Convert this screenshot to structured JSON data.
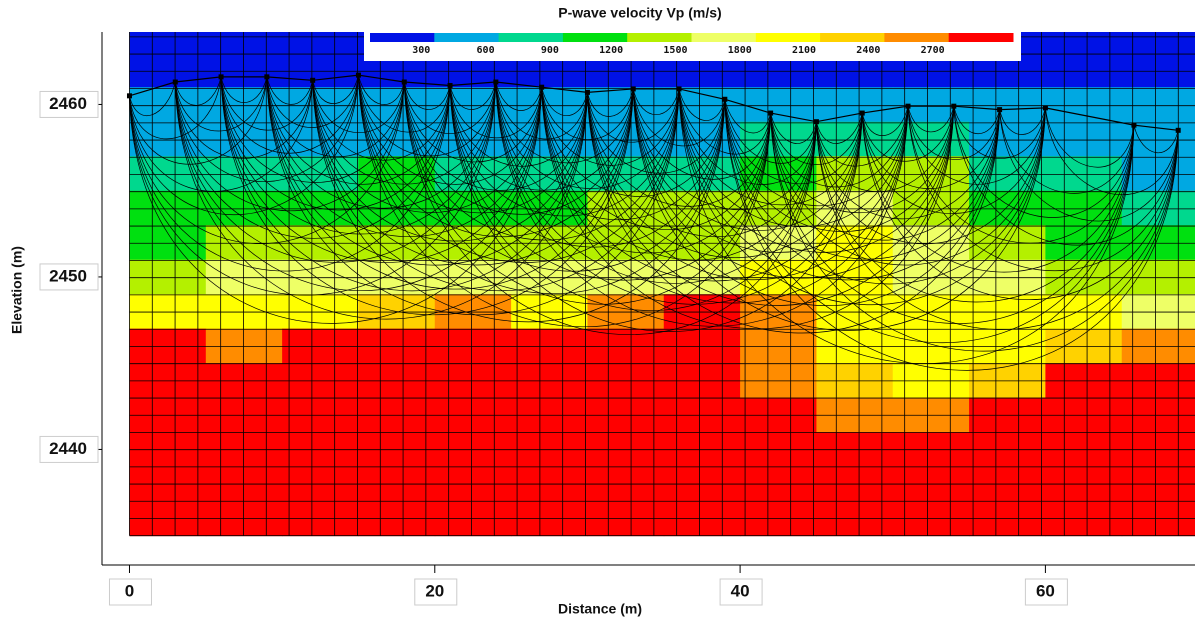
{
  "chart_data": {
    "type": "heatmap",
    "title": "P-wave velocity Vp (m/s)",
    "xlabel": "Distance (m)",
    "ylabel": "Elevation (m)",
    "xlim": [
      -1.8,
      69.8
    ],
    "ylim": [
      2433.3,
      2464.2
    ],
    "xticks": [
      0,
      20,
      40,
      60
    ],
    "yticks": [
      2440,
      2450,
      2460
    ],
    "x_edges": [
      0,
      5,
      10,
      15,
      20,
      25,
      30,
      35,
      40,
      45,
      50,
      55,
      60,
      65,
      70
    ],
    "y_edges": [
      2465,
      2463,
      2461,
      2459,
      2457,
      2455,
      2453,
      2451,
      2449,
      2447,
      2445,
      2443,
      2441,
      2439,
      2437,
      2435
    ],
    "values": [
      [
        150,
        150,
        150,
        150,
        150,
        150,
        150,
        150,
        150,
        150,
        150,
        150,
        150,
        150
      ],
      [
        150,
        150,
        150,
        150,
        150,
        150,
        150,
        150,
        150,
        150,
        150,
        150,
        150,
        150
      ],
      [
        450,
        450,
        450,
        450,
        450,
        450,
        450,
        450,
        450,
        450,
        450,
        450,
        450,
        450
      ],
      [
        450,
        450,
        450,
        450,
        450,
        450,
        450,
        450,
        750,
        750,
        750,
        450,
        450,
        450
      ],
      [
        750,
        750,
        750,
        1050,
        750,
        750,
        750,
        750,
        1050,
        1350,
        1350,
        750,
        750,
        450
      ],
      [
        1050,
        1050,
        1050,
        1050,
        1050,
        1050,
        1350,
        1350,
        1350,
        1650,
        1350,
        1050,
        1050,
        750
      ],
      [
        1050,
        1350,
        1350,
        1350,
        1350,
        1350,
        1350,
        1350,
        1650,
        1950,
        1650,
        1350,
        1050,
        1050
      ],
      [
        1350,
        1650,
        1650,
        1650,
        1650,
        1650,
        1650,
        1650,
        1950,
        1950,
        1650,
        1650,
        1350,
        1350
      ],
      [
        1950,
        1950,
        1950,
        2250,
        2550,
        1950,
        2550,
        2850,
        2550,
        1950,
        1950,
        1950,
        1950,
        1650
      ],
      [
        2850,
        2550,
        2850,
        2850,
        2850,
        2850,
        2850,
        2850,
        2550,
        1950,
        1950,
        1950,
        2250,
        2550
      ],
      [
        2850,
        2850,
        2850,
        2850,
        2850,
        2850,
        2850,
        2850,
        2550,
        2250,
        1950,
        2250,
        2850,
        2850
      ],
      [
        2850,
        2850,
        2850,
        2850,
        2850,
        2850,
        2850,
        2850,
        2850,
        2550,
        2550,
        2850,
        2850,
        2850
      ],
      [
        2850,
        2850,
        2850,
        2850,
        2850,
        2850,
        2850,
        2850,
        2850,
        2850,
        2850,
        2850,
        2850,
        2850
      ],
      [
        2850,
        2850,
        2850,
        2850,
        2850,
        2850,
        2850,
        2850,
        2850,
        2850,
        2850,
        2850,
        2850,
        2850
      ],
      [
        2850,
        2850,
        2850,
        2850,
        2850,
        2850,
        2850,
        2850,
        2850,
        2850,
        2850,
        2850,
        2850,
        2850
      ]
    ],
    "levels": [
      300,
      600,
      900,
      1200,
      1500,
      1800,
      2100,
      2400,
      2700
    ],
    "colors": [
      "#0012e6",
      "#00a8e2",
      "#00d88e",
      "#00e010",
      "#b4f000",
      "#eeff66",
      "#ffff00",
      "#ffd200",
      "#ff8c00",
      "#ff0000"
    ],
    "stations": {
      "x": [
        0,
        3,
        6,
        9,
        12,
        15,
        18,
        21,
        24,
        27,
        30,
        33,
        36,
        39,
        42,
        45,
        48,
        51,
        54,
        57,
        60,
        65.8,
        68.7
      ],
      "y": [
        2460.5,
        2461.3,
        2461.6,
        2461.6,
        2461.4,
        2461.7,
        2461.3,
        2461.1,
        2461.3,
        2461.0,
        2460.7,
        2460.9,
        2460.9,
        2460.3,
        2459.5,
        2459.0,
        2459.5,
        2459.9,
        2459.9,
        2459.7,
        2459.8,
        2458.8,
        2458.5
      ]
    }
  }
}
